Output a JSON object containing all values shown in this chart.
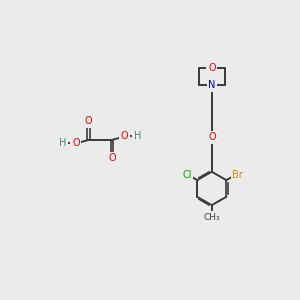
{
  "background_color": "#ebebeb",
  "bond_color": "#3a3a3a",
  "atom_colors": {
    "O": "#ff0000",
    "N": "#0000cc",
    "Cl": "#00aa00",
    "Br": "#cc8800",
    "H": "#5a8080",
    "C": "#3a3a3a"
  },
  "figsize": [
    3.0,
    3.0
  ],
  "dpi": 100
}
